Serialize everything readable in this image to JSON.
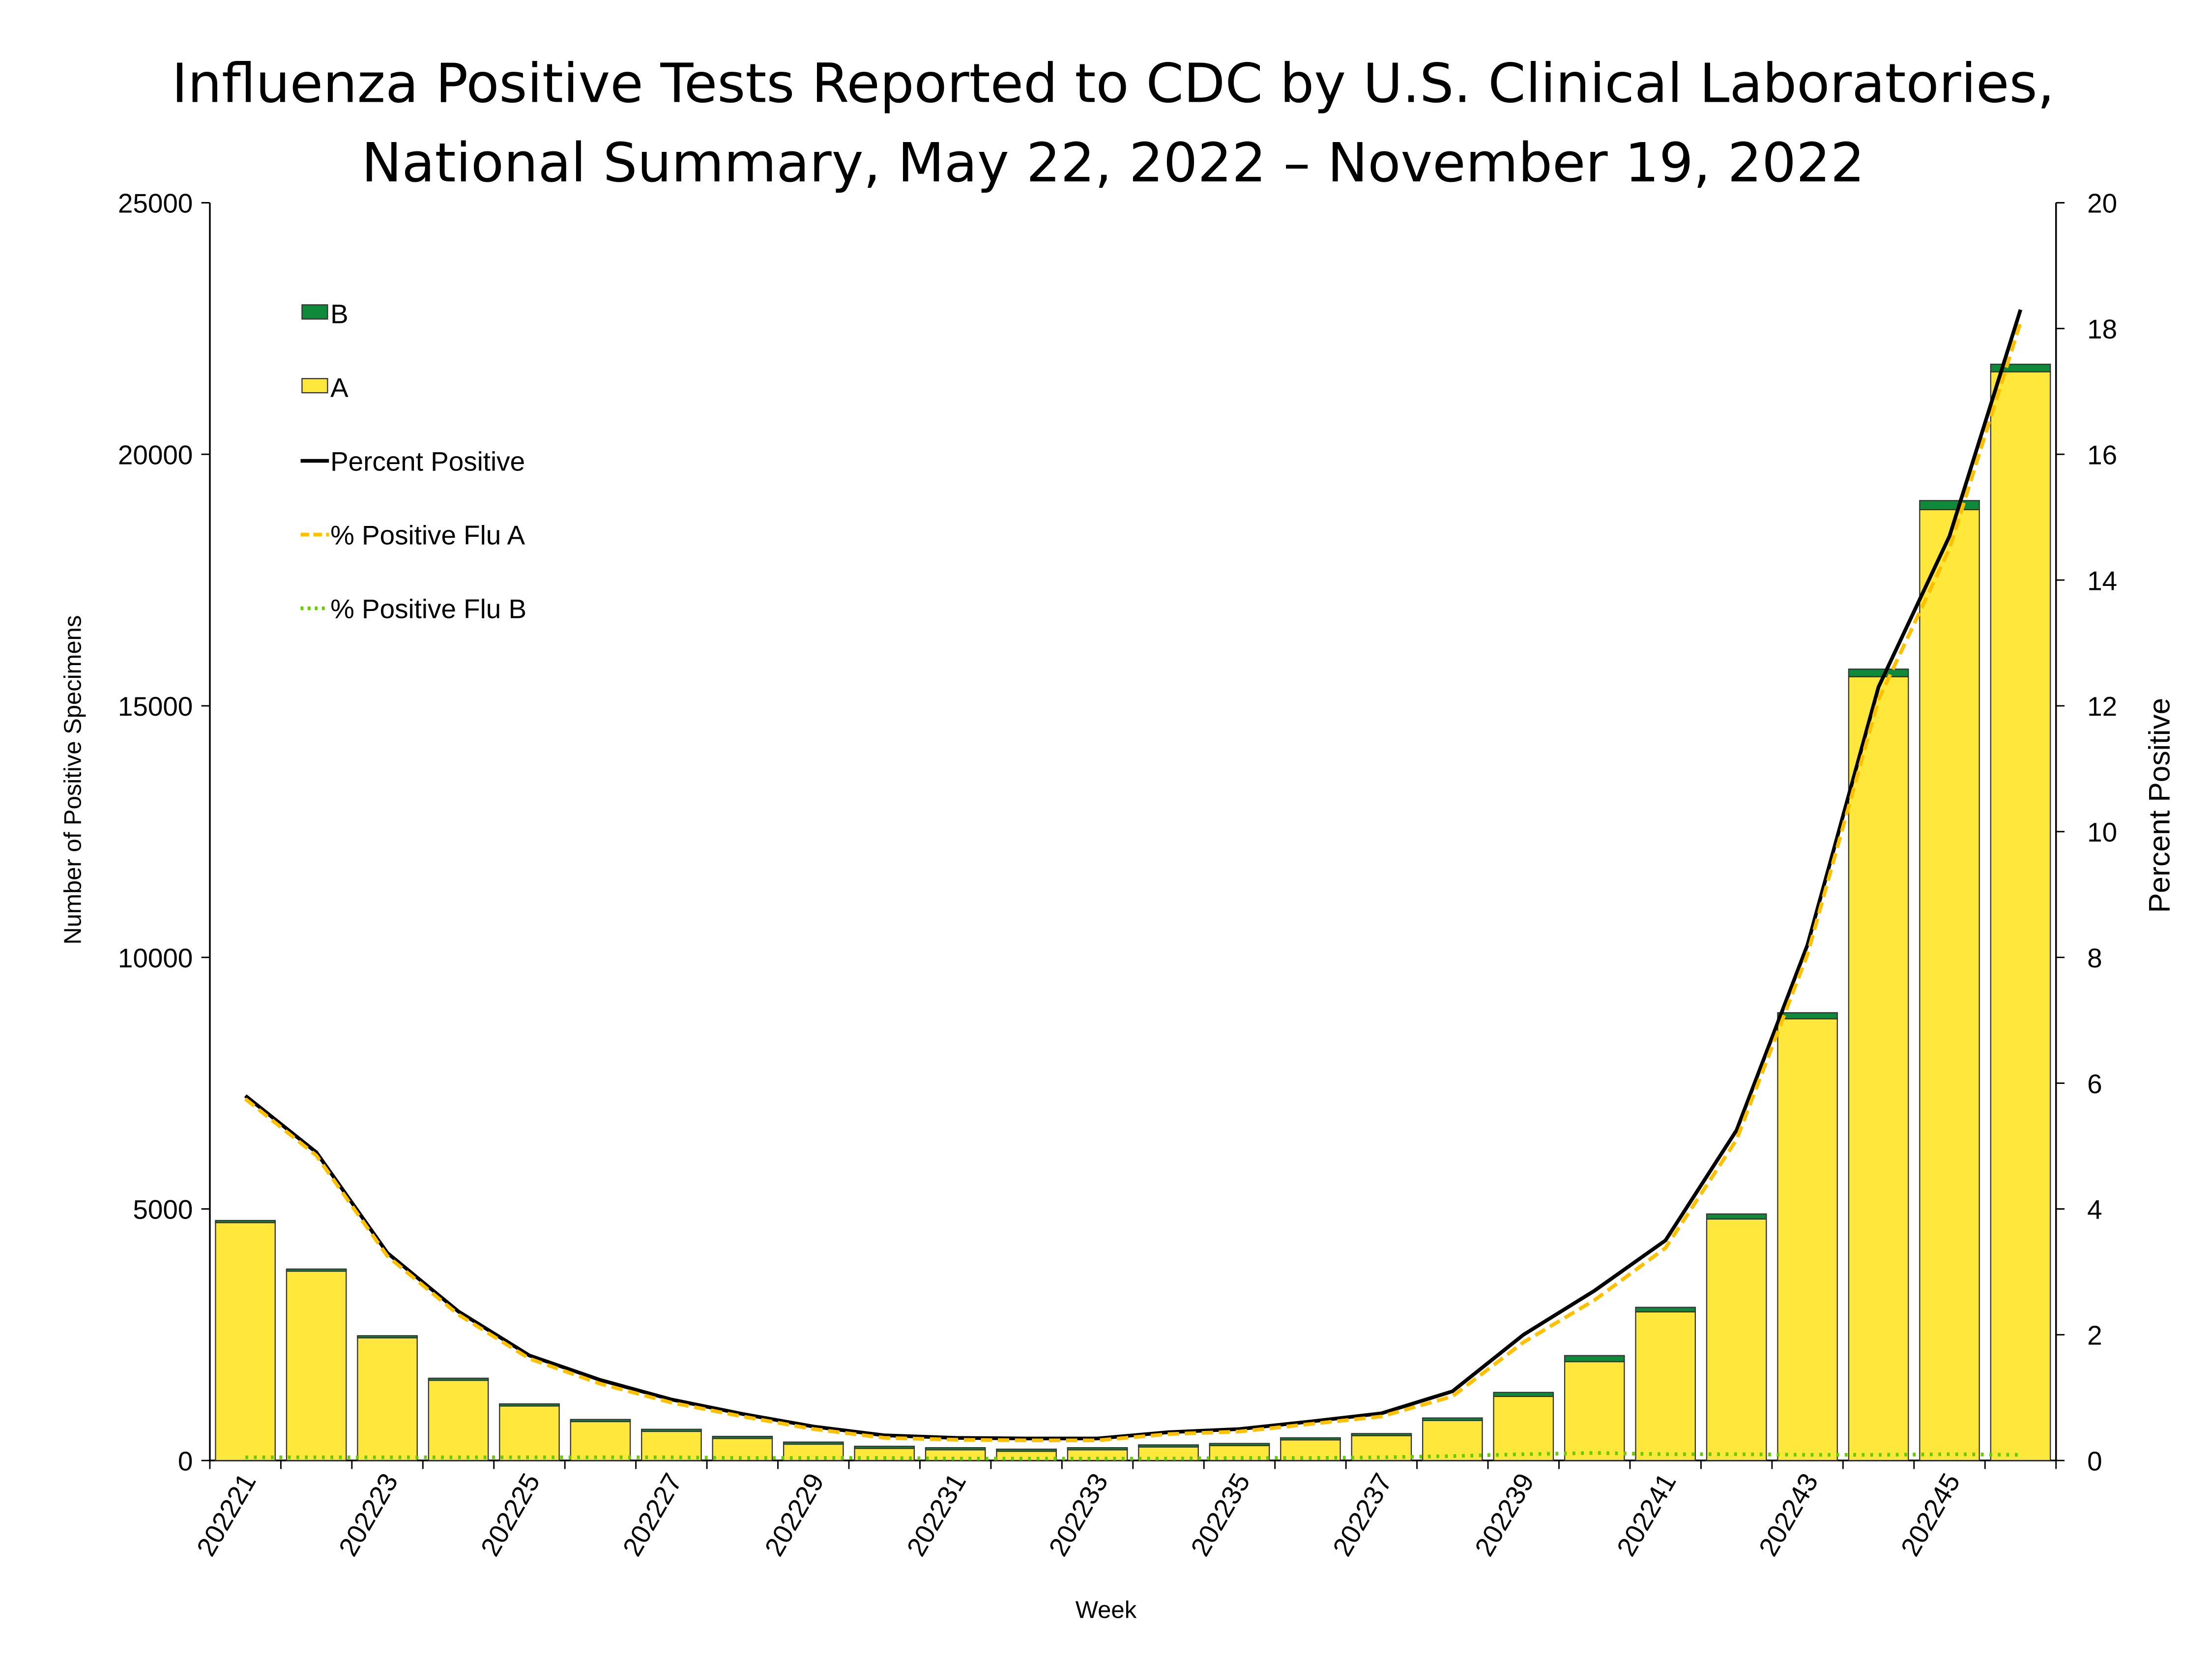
{
  "chart_data": {
    "type": "bar",
    "title": [
      "Influenza Positive Tests Reported to CDC by U.S. Clinical Laboratories,",
      "National Summary, May 22, 2022 – November 19, 2022"
    ],
    "xlabel": "Week",
    "ylabel": "Number of Positive Specimens",
    "y2label": "Percent Positive",
    "ylim": [
      0,
      25000
    ],
    "y2lim": [
      0,
      20
    ],
    "yticks": [
      "0",
      "5000",
      "10000",
      "15000",
      "20000",
      "25000"
    ],
    "y2ticks": [
      "0",
      "2",
      "4",
      "6",
      "8",
      "10",
      "12",
      "14",
      "16",
      "18",
      "20"
    ],
    "categories": [
      "202221",
      "202222",
      "202223",
      "202224",
      "202225",
      "202226",
      "202227",
      "202228",
      "202229",
      "202230",
      "202231",
      "202232",
      "202233",
      "202234",
      "202235",
      "202236",
      "202237",
      "202238",
      "202239",
      "202240",
      "202241",
      "202242",
      "202243",
      "202244",
      "202245",
      "202246"
    ],
    "xtick_labels": [
      "202221",
      "202223",
      "202225",
      "202227",
      "202229",
      "202231",
      "202233",
      "202235",
      "202237",
      "202239",
      "202241",
      "202243",
      "202245"
    ],
    "legend_position": "top-left",
    "series": [
      {
        "name": "B",
        "kind": "bar-stacked",
        "color": "#0E8A3A",
        "values": [
          30,
          25,
          20,
          20,
          15,
          15,
          12,
          12,
          12,
          10,
          10,
          10,
          10,
          10,
          12,
          15,
          20,
          50,
          80,
          120,
          90,
          100,
          120,
          150,
          180,
          150
        ]
      },
      {
        "name": "A",
        "kind": "bar-stacked",
        "color": "#FFE83B",
        "values": [
          4740,
          3780,
          2460,
          1615,
          1110,
          800,
          608,
          467,
          354,
          272,
          244,
          215,
          244,
          300,
          326,
          436,
          515,
          795,
          1273,
          1965,
          2954,
          4800,
          8780,
          15580,
          18900,
          21640
        ]
      },
      {
        "name": "Percent Positive",
        "kind": "line",
        "color": "#000000",
        "values": [
          5.8,
          4.9,
          3.3,
          2.37,
          1.67,
          1.28,
          0.97,
          0.74,
          0.54,
          0.4,
          0.36,
          0.35,
          0.35,
          0.45,
          0.5,
          0.62,
          0.75,
          1.1,
          2.0,
          2.7,
          3.5,
          5.25,
          8.2,
          12.3,
          14.7,
          18.3
        ]
      },
      {
        "name": "% Positive Flu A",
        "kind": "line-dashed",
        "color": "#FFC000",
        "values": [
          5.75,
          4.85,
          3.25,
          2.32,
          1.62,
          1.22,
          0.92,
          0.7,
          0.5,
          0.36,
          0.33,
          0.32,
          0.32,
          0.42,
          0.46,
          0.58,
          0.7,
          1.02,
          1.88,
          2.55,
          3.38,
          5.1,
          8.05,
          12.1,
          14.5,
          18.1
        ]
      },
      {
        "name": "% Positive Flu B",
        "kind": "line-dotted",
        "color": "#66CC00",
        "values": [
          0.05,
          0.05,
          0.05,
          0.05,
          0.05,
          0.05,
          0.05,
          0.04,
          0.04,
          0.04,
          0.03,
          0.03,
          0.03,
          0.03,
          0.04,
          0.04,
          0.05,
          0.07,
          0.1,
          0.12,
          0.1,
          0.1,
          0.09,
          0.09,
          0.1,
          0.09
        ]
      }
    ]
  }
}
